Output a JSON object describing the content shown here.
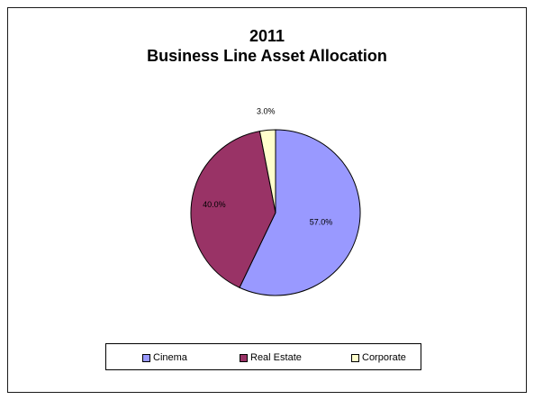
{
  "chart_data": {
    "type": "pie",
    "title": "2011",
    "subtitle": "Business Line Asset Allocation",
    "slices": [
      {
        "name": "Cinema",
        "value": 57.0,
        "label": "57.0%",
        "color": "#9999ff"
      },
      {
        "name": "Real Estate",
        "value": 40.0,
        "label": "40.0%",
        "color": "#993366"
      },
      {
        "name": "Corporate",
        "value": 3.0,
        "label": "3.0%",
        "color": "#ffffcc"
      }
    ],
    "start_angle_deg": 0,
    "direction": "clockwise",
    "legend_position": "bottom"
  },
  "legend": {
    "items": [
      {
        "label": "Cinema",
        "color": "#9999ff"
      },
      {
        "label": "Real Estate",
        "color": "#993366"
      },
      {
        "label": "Corporate",
        "color": "#ffffcc"
      }
    ]
  }
}
